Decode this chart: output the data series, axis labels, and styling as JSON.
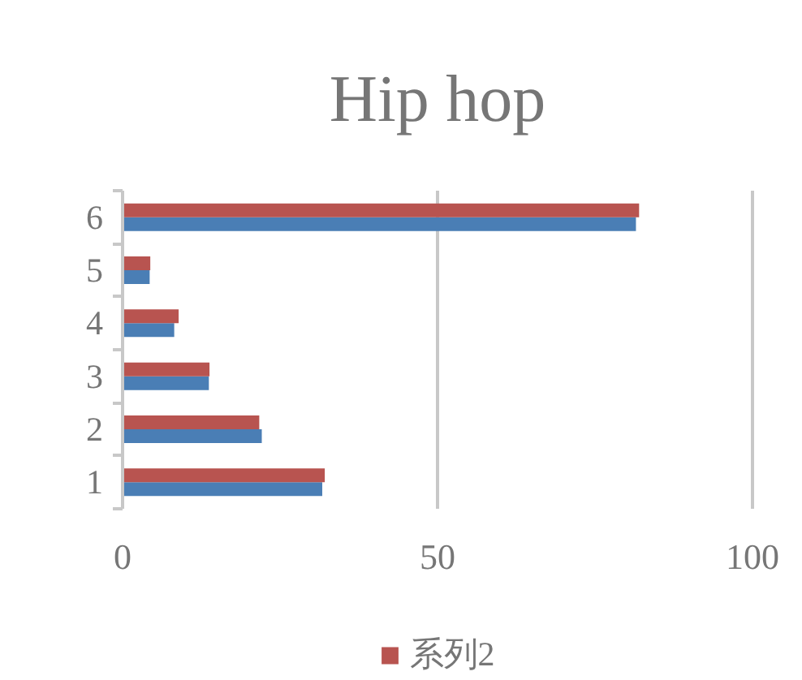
{
  "chart_data": {
    "type": "bar",
    "orientation": "horizontal",
    "title": "Hip hop",
    "categories": [
      "6",
      "5",
      "4",
      "3",
      "2",
      "1"
    ],
    "series": [
      {
        "color": "#4a7eb5",
        "values": [
          81.5,
          4.3,
          8.2,
          13.7,
          22.1,
          31.7
        ]
      },
      {
        "name": "系列2",
        "color": "#b85450",
        "values": [
          82,
          4.4,
          8.9,
          13.8,
          21.7,
          32.1
        ]
      }
    ],
    "xlim": [
      0,
      100
    ],
    "xticks": [
      0,
      50,
      100
    ],
    "grid": "x",
    "legend": "bottom"
  }
}
